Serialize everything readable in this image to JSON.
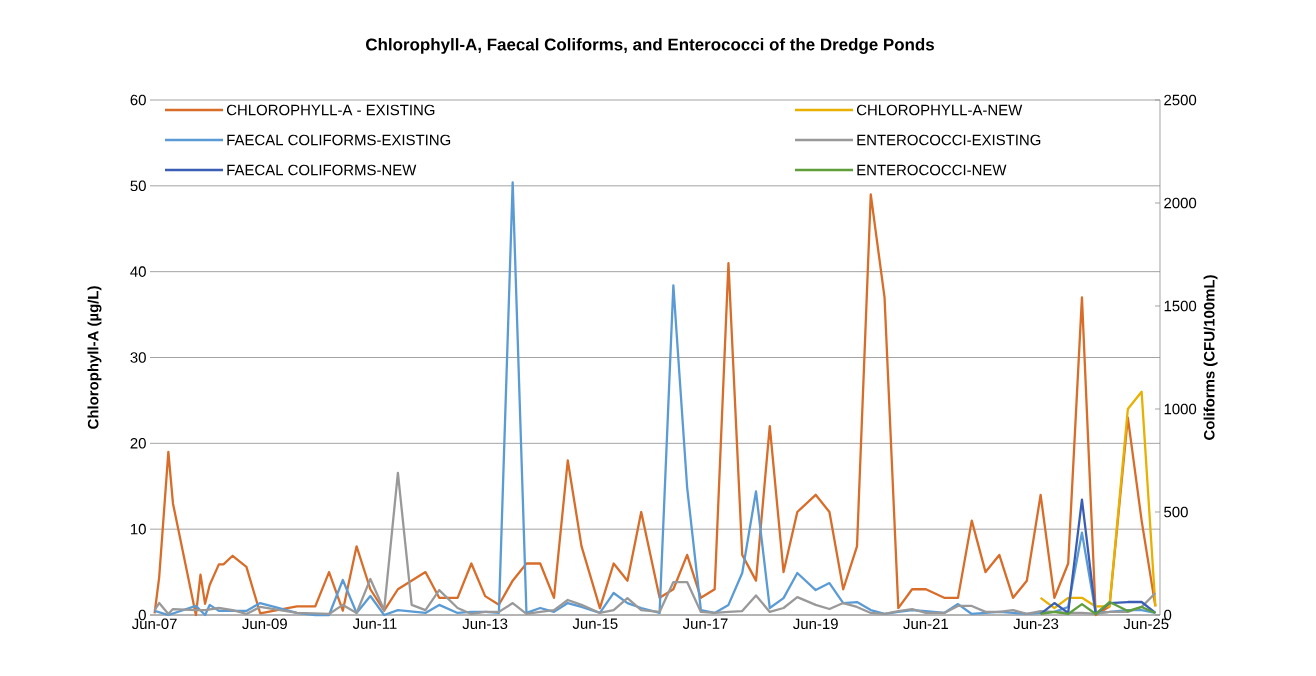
{
  "chart_data": {
    "type": "line",
    "title": "Chlorophyll-A, Faecal Coliforms, and Enterococci of the Dredge Ponds",
    "ylabel": "Chlorophyll-A (µg/L)",
    "y2label": "Coliforms (CFU/100mL)",
    "xlim": [
      "2007-05",
      "2025-09"
    ],
    "xticks": [
      {
        "value": "2007-06",
        "label": "Jun-07"
      },
      {
        "value": "2009-06",
        "label": "Jun-09"
      },
      {
        "value": "2011-06",
        "label": "Jun-11"
      },
      {
        "value": "2013-06",
        "label": "Jun-13"
      },
      {
        "value": "2015-06",
        "label": "Jun-15"
      },
      {
        "value": "2017-06",
        "label": "Jun-17"
      },
      {
        "value": "2019-06",
        "label": "Jun-19"
      },
      {
        "value": "2021-06",
        "label": "Jun-21"
      },
      {
        "value": "2023-06",
        "label": "Jun-23"
      },
      {
        "value": "2025-06",
        "label": "Jun-25"
      }
    ],
    "ylim": [
      0,
      60
    ],
    "yticks": [
      0,
      10,
      20,
      30,
      40,
      50,
      60
    ],
    "y2lim": [
      0,
      2500
    ],
    "y2ticks": [
      0,
      500,
      1000,
      1500,
      2000,
      2500
    ],
    "grid": "y",
    "legend": "top",
    "line_style": "solid",
    "series": [
      {
        "name": "CHLOROPHYLL-A - EXISTING",
        "color": "#d86d2a",
        "axis": "y",
        "x": [
          "2007-06",
          "2007-07",
          "2007-09",
          "2007-10",
          "2008-03",
          "2008-04",
          "2008-05",
          "2008-06",
          "2008-08",
          "2008-09",
          "2008-11",
          "2009-02",
          "2009-05",
          "2010-01",
          "2010-05",
          "2010-08",
          "2010-11",
          "2011-02",
          "2011-05",
          "2011-08",
          "2011-11",
          "2012-05",
          "2012-08",
          "2012-12",
          "2013-03",
          "2013-06",
          "2013-09",
          "2013-12",
          "2014-03",
          "2014-06",
          "2014-09",
          "2014-12",
          "2015-03",
          "2015-07",
          "2015-10",
          "2016-01",
          "2016-04",
          "2016-08",
          "2016-11",
          "2017-02",
          "2017-05",
          "2017-08",
          "2017-11",
          "2018-02",
          "2018-05",
          "2018-08",
          "2018-11",
          "2019-02",
          "2019-06",
          "2019-09",
          "2019-12",
          "2020-03",
          "2020-06",
          "2020-09",
          "2020-12",
          "2021-03",
          "2021-06",
          "2021-10",
          "2022-01",
          "2022-04",
          "2022-07",
          "2022-10",
          "2023-01",
          "2023-04",
          "2023-07",
          "2023-10",
          "2024-01",
          "2024-04",
          "2024-07",
          "2024-10",
          "2025-02",
          "2025-05",
          "2025-08"
        ],
        "values": [
          0.2,
          4.4,
          19,
          13,
          0,
          4.7,
          1.3,
          3.5,
          5.9,
          5.9,
          6.9,
          5.6,
          0.2,
          1,
          1,
          5,
          0.5,
          8,
          3,
          0.5,
          3,
          5,
          2,
          2,
          6,
          2.2,
          1.2,
          4,
          6,
          6,
          2,
          18,
          8,
          0.8,
          6,
          4,
          12,
          2,
          3,
          7,
          2,
          3,
          41,
          7,
          4,
          22,
          5,
          12,
          14,
          12,
          3,
          8,
          49,
          37,
          0.8,
          3,
          3,
          2,
          2,
          11,
          5,
          7,
          2,
          4,
          14,
          2,
          6,
          37,
          0,
          1,
          23,
          11,
          1
        ]
      },
      {
        "name": "CHLOROPHYLL-A-NEW",
        "color": "#e8b000",
        "axis": "y",
        "x": [
          "2023-07",
          "2023-10",
          "2024-01",
          "2024-04",
          "2024-07",
          "2024-10",
          "2025-02",
          "2025-05",
          "2025-08"
        ],
        "values": [
          2,
          0.8,
          2,
          2,
          1,
          1,
          24,
          26,
          1
        ]
      },
      {
        "name": "FAECAL COLIFORMS-EXISTING",
        "color": "#5b9bd5",
        "axis": "y2",
        "x": [
          "2007-06",
          "2007-09",
          "2008-03",
          "2008-05",
          "2008-06",
          "2008-08",
          "2009-02",
          "2009-05",
          "2010-01",
          "2010-05",
          "2010-08",
          "2010-11",
          "2011-02",
          "2011-05",
          "2011-08",
          "2011-11",
          "2012-05",
          "2012-08",
          "2012-12",
          "2013-03",
          "2013-06",
          "2013-09",
          "2013-12",
          "2014-03",
          "2014-06",
          "2014-09",
          "2014-12",
          "2015-03",
          "2015-07",
          "2015-10",
          "2016-01",
          "2016-04",
          "2016-08",
          "2016-11",
          "2017-02",
          "2017-05",
          "2017-08",
          "2017-11",
          "2018-02",
          "2018-05",
          "2018-08",
          "2018-11",
          "2019-02",
          "2019-06",
          "2019-09",
          "2019-12",
          "2020-03",
          "2020-06",
          "2020-09",
          "2020-12",
          "2021-03",
          "2021-06",
          "2021-10",
          "2022-01",
          "2022-04",
          "2022-07",
          "2022-10",
          "2023-01",
          "2023-04",
          "2023-07",
          "2023-10",
          "2024-01",
          "2024-04",
          "2024-07",
          "2024-10",
          "2025-02",
          "2025-05",
          "2025-08"
        ],
        "values": [
          20,
          0,
          44,
          0,
          49,
          20,
          20,
          58,
          10,
          0,
          0,
          170,
          10,
          92,
          0,
          24,
          10,
          49,
          10,
          15,
          15,
          10,
          2100,
          10,
          34,
          15,
          58,
          39,
          10,
          107,
          58,
          34,
          10,
          1600,
          620,
          24,
          10,
          49,
          204,
          600,
          34,
          82,
          204,
          121,
          155,
          58,
          63,
          24,
          5,
          15,
          24,
          19,
          10,
          53,
          5,
          10,
          15,
          10,
          5,
          10,
          15,
          39,
          400,
          10,
          15,
          24,
          24,
          10
        ]
      },
      {
        "name": "ENTEROCOCCI-EXISTING",
        "color": "#999999",
        "axis": "y2",
        "x": [
          "2007-06",
          "2007-07",
          "2007-09",
          "2007-10",
          "2008-03",
          "2008-05",
          "2008-08",
          "2008-11",
          "2009-02",
          "2009-05",
          "2010-01",
          "2010-08",
          "2010-11",
          "2011-02",
          "2011-05",
          "2011-08",
          "2011-11",
          "2012-02",
          "2012-05",
          "2012-08",
          "2012-12",
          "2013-03",
          "2013-06",
          "2013-09",
          "2013-12",
          "2014-03",
          "2014-06",
          "2014-09",
          "2014-12",
          "2015-03",
          "2015-07",
          "2015-10",
          "2016-01",
          "2016-04",
          "2016-08",
          "2016-11",
          "2017-02",
          "2017-05",
          "2017-08",
          "2017-11",
          "2018-02",
          "2018-05",
          "2018-08",
          "2018-11",
          "2019-02",
          "2019-06",
          "2019-09",
          "2019-12",
          "2020-03",
          "2020-06",
          "2020-09",
          "2020-12",
          "2021-03",
          "2021-06",
          "2021-10",
          "2022-01",
          "2022-04",
          "2022-07",
          "2022-10",
          "2023-01",
          "2023-04",
          "2023-07",
          "2023-10",
          "2024-01",
          "2024-04",
          "2024-07",
          "2024-10",
          "2025-02",
          "2025-05",
          "2025-08"
        ],
        "values": [
          24,
          58,
          5,
          29,
          24,
          24,
          34,
          24,
          5,
          39,
          10,
          5,
          49,
          10,
          175,
          24,
          690,
          49,
          24,
          121,
          34,
          5,
          15,
          15,
          58,
          5,
          15,
          24,
          73,
          49,
          10,
          24,
          82,
          24,
          15,
          160,
          160,
          15,
          10,
          15,
          19,
          95,
          15,
          34,
          87,
          49,
          29,
          58,
          39,
          10,
          5,
          19,
          29,
          10,
          10,
          44,
          44,
          15,
          15,
          24,
          5,
          19,
          15,
          10,
          10,
          5,
          15,
          15,
          39,
          107
        ]
      },
      {
        "name": "FAECAL COLIFORMS-NEW",
        "color": "#3b5eb5",
        "axis": "y2",
        "x": [
          "2023-07",
          "2023-10",
          "2024-01",
          "2024-04",
          "2024-07",
          "2024-10",
          "2025-02",
          "2025-05",
          "2025-08"
        ],
        "values": [
          5,
          58,
          10,
          560,
          5,
          58,
          63,
          63,
          10
        ]
      },
      {
        "name": "ENTEROCOCCI-NEW",
        "color": "#5e9f3c",
        "axis": "y2",
        "x": [
          "2023-07",
          "2023-10",
          "2024-01",
          "2024-04",
          "2024-07",
          "2024-10",
          "2025-02",
          "2025-05",
          "2025-08"
        ],
        "values": [
          5,
          15,
          5,
          53,
          5,
          63,
          19,
          39,
          10
        ]
      }
    ]
  }
}
